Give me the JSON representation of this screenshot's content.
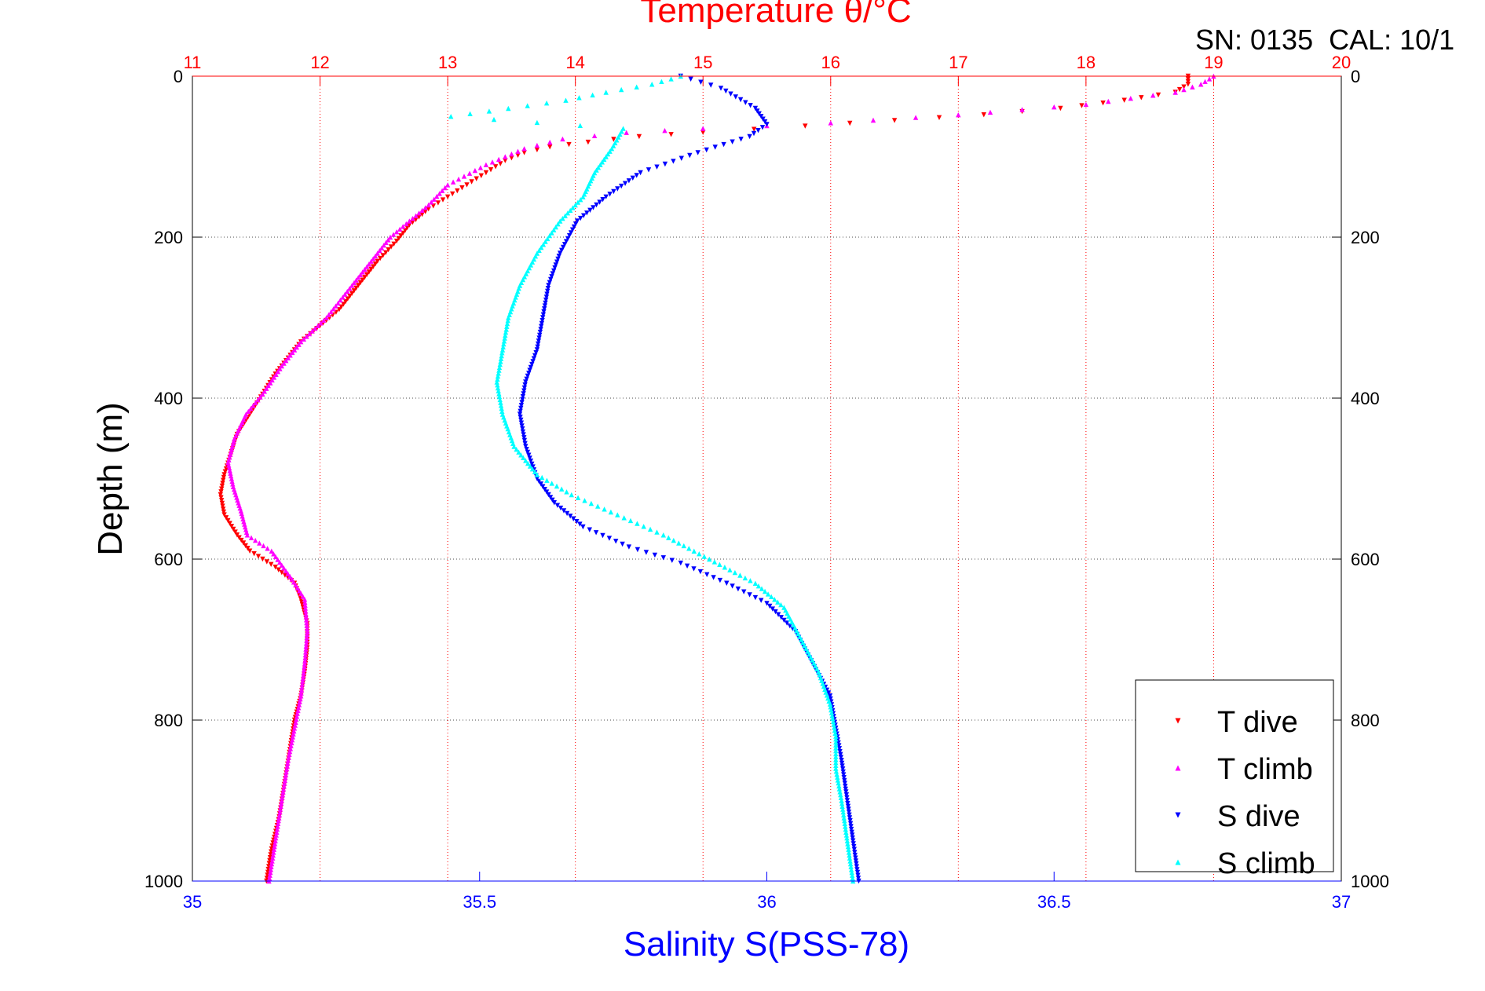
{
  "chart_data": {
    "type": "scatter",
    "title": "Temperature θ/°C",
    "annotation": "SN: 0135  CAL: 10/1",
    "xlabel_bottom": "Salinity S(PSS-78)",
    "ylabel": "Depth (m)",
    "top_axis": {
      "quantity": "Temperature",
      "xlim": [
        11,
        20
      ],
      "ticks": [
        "11",
        "12",
        "13",
        "14",
        "15",
        "16",
        "17",
        "18",
        "19",
        "20"
      ],
      "color": "#ff0000",
      "grid": true
    },
    "bottom_axis": {
      "quantity": "Salinity",
      "xlim": [
        35,
        37
      ],
      "ticks": [
        "35",
        "35.5",
        "36",
        "36.5",
        "37"
      ],
      "color": "#0000ff",
      "grid": false
    },
    "y_axis": {
      "ylim": [
        0,
        1000
      ],
      "reversed": true,
      "ticks": [
        "0",
        "200",
        "400",
        "600",
        "800",
        "1000"
      ],
      "grid": true
    },
    "legend_position": "bottom-right",
    "series": [
      {
        "name": "T dive",
        "axis": "temperature",
        "color": "#ff0000",
        "marker": "triangle-down",
        "points": [
          [
            18.8,
            0
          ],
          [
            18.8,
            10
          ],
          [
            18.7,
            20
          ],
          [
            18.3,
            30
          ],
          [
            17.8,
            40
          ],
          [
            17.2,
            48
          ],
          [
            16.5,
            55
          ],
          [
            15.8,
            62
          ],
          [
            15.0,
            70
          ],
          [
            14.5,
            75
          ],
          [
            14.1,
            82
          ],
          [
            13.8,
            88
          ],
          [
            13.6,
            95
          ],
          [
            13.45,
            105
          ],
          [
            13.3,
            120
          ],
          [
            13.15,
            135
          ],
          [
            13.0,
            150
          ],
          [
            12.85,
            165
          ],
          [
            12.7,
            185
          ],
          [
            12.6,
            205
          ],
          [
            12.45,
            230
          ],
          [
            12.3,
            260
          ],
          [
            12.15,
            290
          ],
          [
            12.0,
            310
          ],
          [
            11.85,
            330
          ],
          [
            11.75,
            350
          ],
          [
            11.65,
            370
          ],
          [
            11.55,
            395
          ],
          [
            11.45,
            420
          ],
          [
            11.35,
            445
          ],
          [
            11.3,
            470
          ],
          [
            11.25,
            495
          ],
          [
            11.22,
            520
          ],
          [
            11.25,
            545
          ],
          [
            11.35,
            570
          ],
          [
            11.45,
            590
          ],
          [
            11.65,
            610
          ],
          [
            11.8,
            630
          ],
          [
            11.85,
            650
          ],
          [
            11.9,
            680
          ],
          [
            11.9,
            710
          ],
          [
            11.88,
            740
          ],
          [
            11.85,
            770
          ],
          [
            11.8,
            800
          ],
          [
            11.76,
            840
          ],
          [
            11.72,
            880
          ],
          [
            11.68,
            920
          ],
          [
            11.62,
            960
          ],
          [
            11.58,
            1000
          ]
        ]
      },
      {
        "name": "T climb",
        "axis": "temperature",
        "color": "#ff00ff",
        "marker": "triangle-up",
        "points": [
          [
            19.0,
            0
          ],
          [
            18.9,
            10
          ],
          [
            18.7,
            20
          ],
          [
            18.0,
            35
          ],
          [
            17.0,
            48
          ],
          [
            16.0,
            58
          ],
          [
            15.0,
            65
          ],
          [
            14.4,
            70
          ],
          [
            13.9,
            78
          ],
          [
            13.6,
            90
          ],
          [
            13.3,
            110
          ],
          [
            13.0,
            135
          ],
          [
            12.85,
            160
          ],
          [
            12.7,
            180
          ],
          [
            12.55,
            200
          ],
          [
            12.4,
            230
          ],
          [
            12.25,
            260
          ],
          [
            12.05,
            300
          ],
          [
            11.85,
            330
          ],
          [
            11.7,
            360
          ],
          [
            11.55,
            395
          ],
          [
            11.42,
            420
          ],
          [
            11.33,
            450
          ],
          [
            11.28,
            480
          ],
          [
            11.32,
            510
          ],
          [
            11.38,
            540
          ],
          [
            11.43,
            570
          ],
          [
            11.62,
            590
          ],
          [
            11.78,
            625
          ],
          [
            11.88,
            650
          ],
          [
            11.9,
            690
          ],
          [
            11.88,
            730
          ],
          [
            11.85,
            770
          ],
          [
            11.8,
            810
          ],
          [
            11.75,
            850
          ],
          [
            11.7,
            900
          ],
          [
            11.65,
            950
          ],
          [
            11.6,
            1000
          ]
        ]
      },
      {
        "name": "S dive",
        "axis": "salinity",
        "color": "#0000ff",
        "marker": "triangle-down",
        "points": [
          [
            35.85,
            0
          ],
          [
            35.92,
            15
          ],
          [
            35.98,
            40
          ],
          [
            36.0,
            60
          ],
          [
            35.97,
            75
          ],
          [
            35.88,
            95
          ],
          [
            35.78,
            120
          ],
          [
            35.72,
            150
          ],
          [
            35.67,
            180
          ],
          [
            35.64,
            220
          ],
          [
            35.62,
            260
          ],
          [
            35.61,
            300
          ],
          [
            35.6,
            340
          ],
          [
            35.58,
            380
          ],
          [
            35.57,
            420
          ],
          [
            35.58,
            460
          ],
          [
            35.6,
            500
          ],
          [
            35.63,
            530
          ],
          [
            35.68,
            560
          ],
          [
            35.76,
            585
          ],
          [
            35.85,
            605
          ],
          [
            35.93,
            630
          ],
          [
            36.0,
            655
          ],
          [
            36.05,
            690
          ],
          [
            36.08,
            730
          ],
          [
            36.11,
            770
          ],
          [
            36.12,
            810
          ],
          [
            36.13,
            850
          ],
          [
            36.14,
            900
          ],
          [
            36.15,
            950
          ],
          [
            36.16,
            1000
          ]
        ]
      },
      {
        "name": "S climb",
        "axis": "salinity",
        "color": "#00ffff",
        "marker": "triangle-up",
        "points": [
          [
            35.85,
            0
          ],
          [
            35.8,
            10
          ],
          [
            35.72,
            20
          ],
          [
            35.65,
            30
          ],
          [
            35.55,
            40
          ],
          [
            35.45,
            50
          ],
          [
            35.75,
            65
          ],
          [
            35.73,
            90
          ],
          [
            35.7,
            120
          ],
          [
            35.68,
            150
          ],
          [
            35.64,
            180
          ],
          [
            35.6,
            220
          ],
          [
            35.57,
            260
          ],
          [
            35.55,
            300
          ],
          [
            35.54,
            340
          ],
          [
            35.53,
            380
          ],
          [
            35.54,
            420
          ],
          [
            35.56,
            460
          ],
          [
            35.6,
            495
          ],
          [
            35.66,
            520
          ],
          [
            35.74,
            545
          ],
          [
            35.82,
            570
          ],
          [
            35.9,
            600
          ],
          [
            35.98,
            630
          ],
          [
            36.03,
            660
          ],
          [
            36.06,
            700
          ],
          [
            36.09,
            740
          ],
          [
            36.11,
            780
          ],
          [
            36.12,
            820
          ],
          [
            36.12,
            860
          ],
          [
            36.13,
            900
          ],
          [
            36.14,
            950
          ],
          [
            36.15,
            1000
          ]
        ]
      }
    ]
  }
}
